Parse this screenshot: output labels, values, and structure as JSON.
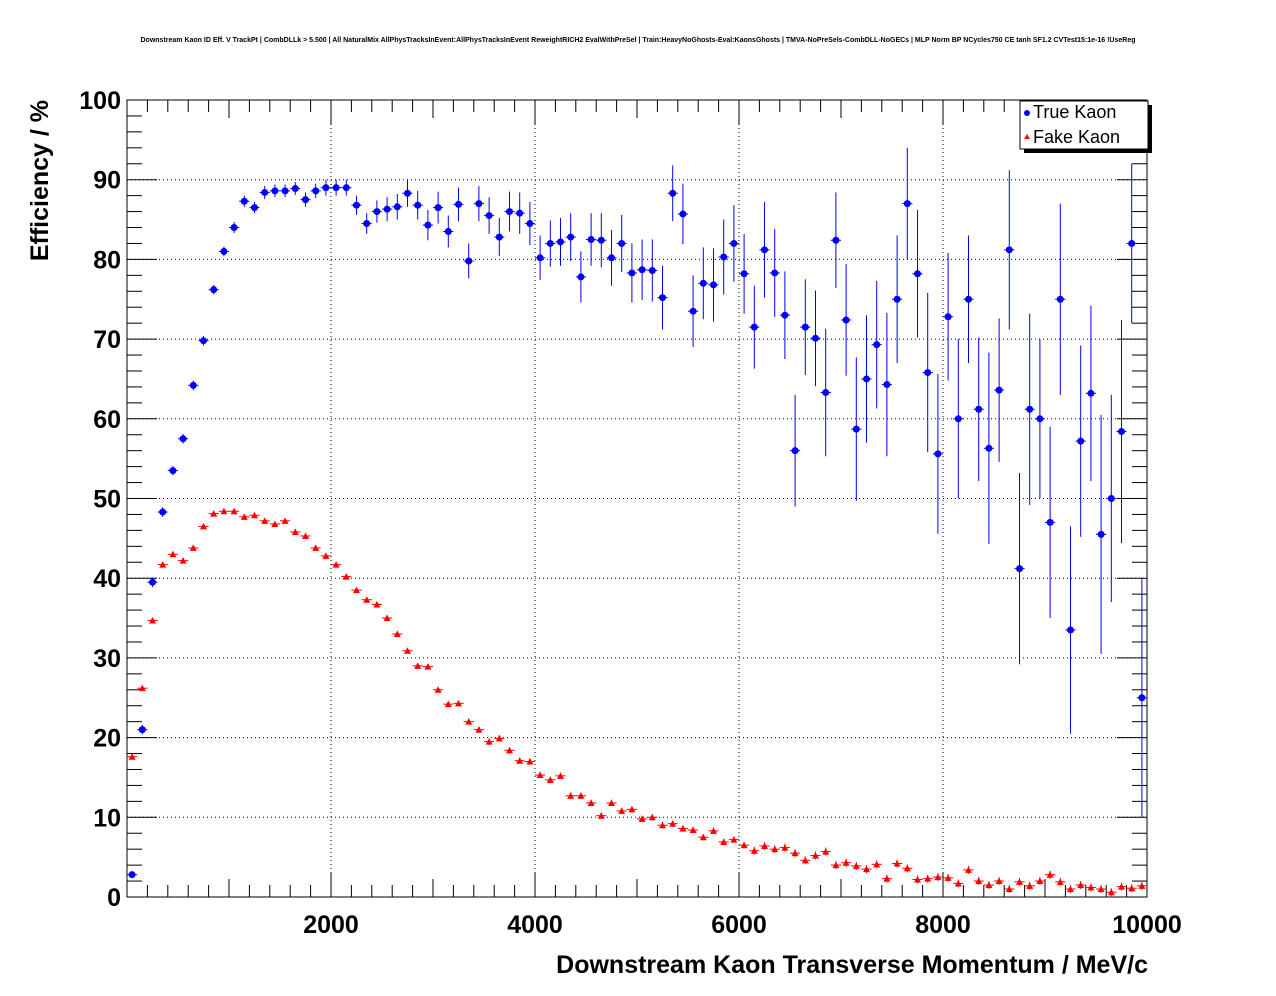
{
  "chart_data": {
    "type": "scatter",
    "title": "Downstream Kaon ID Eff. V TrackPt | CombDLLk > 5.500 | All NaturalMix AllPhysTracksInEvent:AllPhysTracksInEvent ReweightRICH2 EvalWithPreSel | Train:HeavyNoGhosts-Eval:KaonsGhosts | TMVA-NoPreSels-CombDLL-NoGECs | MLP Norm BP NCycles750 CE tanh SF1.2 CVTest15:1e-16 !UseReg",
    "xlabel": "Downstream Kaon Transverse Momentum / MeV/c",
    "ylabel": "Efficiency / %",
    "xlim": [
      0,
      10000
    ],
    "ylim": [
      0,
      100
    ],
    "xticks": [
      "2000",
      "4000",
      "6000",
      "8000",
      "10000"
    ],
    "yticks": [
      "0",
      "10",
      "20",
      "30",
      "40",
      "50",
      "60",
      "70",
      "80",
      "90",
      "100"
    ],
    "grid": true,
    "legend_position": "top-right",
    "bin_width": 100,
    "series": [
      {
        "name": "True Kaon",
        "color": "#0000ff",
        "marker": "circle",
        "x": [
          50,
          150,
          250,
          350,
          450,
          550,
          650,
          750,
          850,
          950,
          1050,
          1150,
          1250,
          1350,
          1450,
          1550,
          1650,
          1750,
          1850,
          1950,
          2050,
          2150,
          2250,
          2350,
          2450,
          2550,
          2650,
          2750,
          2850,
          2950,
          3050,
          3150,
          3250,
          3350,
          3450,
          3550,
          3650,
          3750,
          3850,
          3950,
          4050,
          4150,
          4250,
          4350,
          4450,
          4550,
          4650,
          4750,
          4850,
          4950,
          5050,
          5150,
          5250,
          5350,
          5450,
          5550,
          5650,
          5750,
          5850,
          5950,
          6050,
          6150,
          6250,
          6350,
          6450,
          6550,
          6650,
          6750,
          6850,
          6950,
          7050,
          7150,
          7250,
          7350,
          7450,
          7550,
          7650,
          7750,
          7850,
          7950,
          8050,
          8150,
          8250,
          8350,
          8450,
          8550,
          8650,
          8750,
          8850,
          8950,
          9050,
          9150,
          9250,
          9350,
          9450,
          9550,
          9650,
          9750,
          9850,
          9950
        ],
        "y": [
          2.8,
          21,
          39.5,
          48.3,
          53.5,
          57.5,
          64.2,
          69.8,
          76.2,
          81,
          84,
          87.3,
          86.5,
          88.4,
          88.6,
          88.6,
          88.9,
          87.5,
          88.6,
          89,
          89,
          89,
          86.8,
          84.5,
          86,
          86.3,
          86.6,
          88.3,
          86.8,
          84.3,
          86.5,
          83.5,
          86.9,
          79.8,
          87,
          85.5,
          82.8,
          86,
          85.8,
          84.5,
          80.2,
          82,
          82.2,
          82.8,
          77.8,
          82.5,
          82.4,
          80.2,
          82,
          78.3,
          78.7,
          78.6,
          75.2,
          88.3,
          85.7,
          73.5,
          77,
          76.8,
          80.3,
          82,
          78.2,
          71.5,
          81.2,
          78.3,
          73,
          56,
          71.5,
          70.1,
          63.3,
          82.4,
          72.4,
          58.7,
          65,
          69.3,
          64.3,
          75,
          87,
          78.2,
          65.8,
          55.6,
          72.8,
          60,
          75,
          61.2,
          56.3,
          63.6,
          81.2,
          41.2,
          61.2,
          60,
          47,
          75,
          33.5,
          57.2,
          63.2,
          45.5,
          50,
          58.4,
          82,
          25
        ],
        "yerr": [
          0.4,
          0.6,
          0.6,
          0.6,
          0.6,
          0.6,
          0.6,
          0.6,
          0.6,
          0.6,
          0.7,
          0.7,
          0.7,
          0.8,
          0.8,
          0.8,
          0.8,
          0.9,
          0.9,
          1,
          1,
          1,
          1.2,
          1.3,
          1.4,
          1.5,
          1.6,
          1.7,
          1.8,
          1.9,
          2,
          2,
          2.1,
          2.2,
          2.2,
          2.3,
          2.4,
          2.5,
          2.6,
          2.7,
          2.8,
          2.9,
          3,
          3,
          3.2,
          3.3,
          3.4,
          3.5,
          3.6,
          3.7,
          3.8,
          3.9,
          4,
          3.5,
          3.8,
          4.5,
          4.5,
          4.6,
          4.7,
          4.8,
          5,
          5.2,
          6,
          5.5,
          5.5,
          7,
          6,
          6,
          8,
          6,
          7,
          9,
          8,
          8,
          9,
          8,
          7,
          8,
          10,
          10,
          8,
          10,
          8,
          9,
          12,
          9,
          10,
          12,
          12,
          10,
          12,
          12,
          13,
          12,
          11,
          15,
          13,
          14,
          10,
          15
        ]
      },
      {
        "name": "Fake Kaon",
        "color": "#ff0000",
        "marker": "triangle",
        "x": [
          50,
          150,
          250,
          350,
          450,
          550,
          650,
          750,
          850,
          950,
          1050,
          1150,
          1250,
          1350,
          1450,
          1550,
          1650,
          1750,
          1850,
          1950,
          2050,
          2150,
          2250,
          2350,
          2450,
          2550,
          2650,
          2750,
          2850,
          2950,
          3050,
          3150,
          3250,
          3350,
          3450,
          3550,
          3650,
          3750,
          3850,
          3950,
          4050,
          4150,
          4250,
          4350,
          4450,
          4550,
          4650,
          4750,
          4850,
          4950,
          5050,
          5150,
          5250,
          5350,
          5450,
          5550,
          5650,
          5750,
          5850,
          5950,
          6050,
          6150,
          6250,
          6350,
          6450,
          6550,
          6650,
          6750,
          6850,
          6950,
          7050,
          7150,
          7250,
          7350,
          7450,
          7550,
          7650,
          7750,
          7850,
          7950,
          8050,
          8150,
          8250,
          8350,
          8450,
          8550,
          8650,
          8750,
          8850,
          8950,
          9050,
          9150,
          9250,
          9350,
          9450,
          9550,
          9650,
          9750,
          9850,
          9950
        ],
        "y": [
          17.6,
          26.2,
          34.7,
          41.7,
          43,
          42.2,
          43.8,
          46.5,
          48.1,
          48.4,
          48.4,
          47.7,
          47.9,
          47.2,
          46.8,
          47.2,
          45.8,
          45.3,
          43.8,
          42.8,
          41.7,
          40.2,
          38.5,
          37.3,
          36.7,
          35,
          33,
          30.9,
          29,
          28.9,
          26,
          24.2,
          24.3,
          22,
          21,
          19.5,
          19.9,
          18.4,
          17.1,
          17,
          15.3,
          14.7,
          15.2,
          12.7,
          12.7,
          11.8,
          10.2,
          11.8,
          10.8,
          11,
          9.8,
          10,
          9,
          9.2,
          8.6,
          8.4,
          7.5,
          8.3,
          6.9,
          7.2,
          6.5,
          5.8,
          6.4,
          6,
          6.2,
          5.5,
          4.6,
          5.2,
          5.7,
          4,
          4.3,
          3.9,
          3.5,
          4.1,
          2.3,
          4.2,
          3.6,
          2.2,
          2.3,
          2.5,
          2.4,
          1.7,
          3.4,
          2,
          1.5,
          2,
          1,
          1.9,
          1.4,
          2,
          2.8,
          1.9,
          1,
          1.5,
          1.2,
          1,
          0.6,
          1.3,
          1.1,
          1.4
        ],
        "yerr": [
          0.3,
          0.3,
          0.3,
          0.3,
          0.3,
          0.3,
          0.3,
          0.3,
          0.3,
          0.3,
          0.3,
          0.3,
          0.3,
          0.3,
          0.3,
          0.3,
          0.3,
          0.3,
          0.3,
          0.3,
          0.3,
          0.3,
          0.3,
          0.3,
          0.3,
          0.3,
          0.3,
          0.3,
          0.3,
          0.3,
          0.3,
          0.3,
          0.3,
          0.3,
          0.4,
          0.4,
          0.4,
          0.4,
          0.4,
          0.4,
          0.4,
          0.4,
          0.4,
          0.4,
          0.4,
          0.4,
          0.4,
          0.4,
          0.4,
          0.4,
          0.4,
          0.4,
          0.4,
          0.4,
          0.4,
          0.4,
          0.4,
          0.4,
          0.4,
          0.4,
          0.4,
          0.5,
          0.5,
          0.5,
          0.5,
          0.5,
          0.5,
          0.5,
          0.5,
          0.5,
          0.5,
          0.5,
          0.5,
          0.5,
          0.5,
          0.5,
          0.5,
          0.5,
          0.5,
          0.5,
          0.5,
          0.5,
          0.5,
          0.5,
          0.5,
          0.5,
          0.5,
          0.5,
          0.5,
          0.5,
          0.5,
          0.5,
          0.5,
          0.5,
          0.5,
          0.5,
          0.5,
          0.5,
          0.5,
          0.5
        ]
      }
    ]
  }
}
